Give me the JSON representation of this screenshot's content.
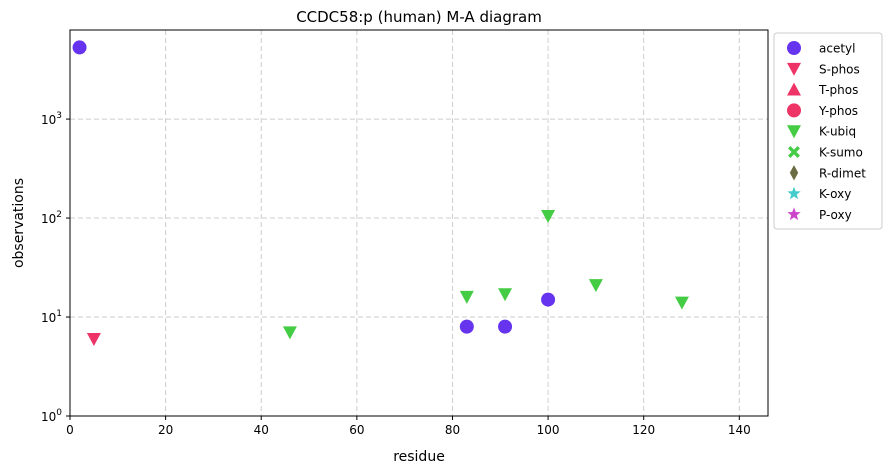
{
  "chart_data": {
    "type": "scatter",
    "title": "CCDC58:p (human) M-A diagram",
    "xlabel": "residue",
    "ylabel": "observations",
    "xlim": [
      0,
      146
    ],
    "ylim": [
      1,
      7943
    ],
    "yscale": "log",
    "grid": true,
    "legend_position": "outside-top-right",
    "x_ticks": [
      "0",
      "20",
      "40",
      "60",
      "80",
      "100",
      "120",
      "140"
    ],
    "y_ticks": [
      {
        "base": "10",
        "exp": "0"
      },
      {
        "base": "10",
        "exp": "1"
      },
      {
        "base": "10",
        "exp": "2"
      },
      {
        "base": "10",
        "exp": "3"
      }
    ],
    "series": [
      {
        "name": "acetyl",
        "marker": "circle",
        "color": "#6633ee",
        "points": [
          [
            2,
            5300
          ],
          [
            83,
            8
          ],
          [
            91,
            8
          ],
          [
            100,
            15
          ]
        ]
      },
      {
        "name": "S-phos",
        "marker": "triangle-down",
        "color": "#ee3366",
        "points": [
          [
            5,
            6
          ]
        ]
      },
      {
        "name": "T-phos",
        "marker": "triangle-up",
        "color": "#ee3366",
        "points": []
      },
      {
        "name": "Y-phos",
        "marker": "circle",
        "color": "#ee3366",
        "points": []
      },
      {
        "name": "K-ubiq",
        "marker": "triangle-down",
        "color": "#44cc44",
        "points": [
          [
            46,
            7
          ],
          [
            83,
            16
          ],
          [
            91,
            17
          ],
          [
            100,
            105
          ],
          [
            110,
            21
          ],
          [
            128,
            14
          ]
        ]
      },
      {
        "name": "K-sumo",
        "marker": "x",
        "color": "#44cc44",
        "points": []
      },
      {
        "name": "R-dimet",
        "marker": "diamond",
        "color": "#6b6b44",
        "points": []
      },
      {
        "name": "K-oxy",
        "marker": "star",
        "color": "#44cccc",
        "points": []
      },
      {
        "name": "P-oxy",
        "marker": "star",
        "color": "#cc44cc",
        "points": []
      }
    ]
  }
}
